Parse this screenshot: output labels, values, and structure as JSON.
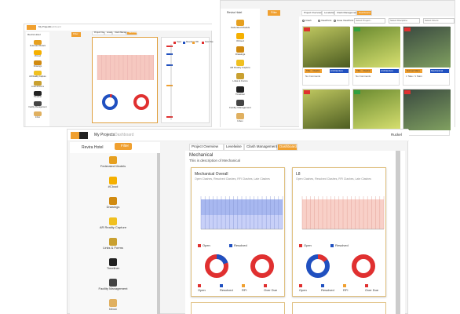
{
  "top_left": {
    "breadcrumb": [
      "My Projects",
      "Dashboard"
    ],
    "project": "Revira Hotel",
    "filter": "Filter",
    "sidebar": [
      "Federated Models",
      "#Cloud",
      "Drawings",
      "AR Reality Capture",
      "Links & Forms",
      "Timeliner",
      "Facility Management",
      "Inbox"
    ],
    "tabs": [
      "Project Overview",
      "Levelwise",
      "Clash Management",
      "Dashboard"
    ],
    "legend": [
      "Open",
      "Resolved",
      "RFI",
      "Over Due"
    ]
  },
  "top_right": {
    "project": "Revira Hotel",
    "filter": "Filter",
    "sidebar": [
      "Federated Models",
      "#Cloud",
      "Drawings",
      "AR Reality Capture",
      "Links & Forms",
      "Timeliner",
      "Facility Management",
      "Inbox"
    ],
    "tabs": [
      "Project Overview",
      "Levelwise",
      "Clash Management",
      "Dashboard"
    ],
    "filters": [
      "Clash",
      "ViewPoint",
      "Issue ViewPoint"
    ],
    "selects": [
      "Select Project...",
      "Select Discipline",
      "Select Floors"
    ],
    "cards": [
      {
        "title": "Title - Clash1",
        "comment": "No Comments",
        "tag": "Architecture"
      },
      {
        "title": "Title - Clash2",
        "comment": "No Comments",
        "tag": "Architecture"
      },
      {
        "title": "Sunset Mars",
        "comment": "1 Take / 1 Stars",
        "tag": "Mechanical"
      }
    ]
  },
  "main": {
    "breadcrumb": [
      "My Projects",
      "Dashboard"
    ],
    "user": "Ruckel",
    "project": "Revira Hotel",
    "filter": "Filter",
    "sidebar": [
      "Federated Models",
      "#Cloud",
      "Drawings",
      "AR Reality Capture",
      "Links & Forms",
      "Timeliner",
      "Facility Management",
      "Inbox"
    ],
    "tabs": [
      "Project Overview",
      "Levelwise",
      "Clash Management",
      "Dashboard"
    ],
    "heading": "Mechanical",
    "description": "This is description of Mechanical",
    "cards": [
      {
        "title": "Mechanical Overall",
        "subtitle": "Open Clashes, Resolved Clashes, RFI Clashes, Late Clashes",
        "legend_top": [
          "Open",
          "Resolved"
        ],
        "legend_bottom": [
          "Open",
          "Resolved",
          "RFI",
          "Over Due"
        ]
      },
      {
        "title": "L8",
        "subtitle": "Open Clashes, Resolved Clashes, RFI Clashes, Late Clashes",
        "legend_top": [
          "Open",
          "Resolved"
        ],
        "legend_bottom": [
          "Open",
          "Resolved",
          "RFI",
          "Over Due"
        ]
      }
    ]
  }
}
